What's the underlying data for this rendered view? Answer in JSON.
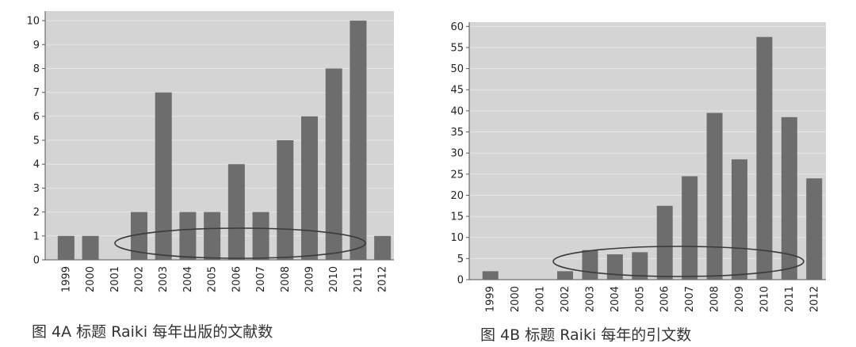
{
  "chart_data": [
    {
      "type": "bar",
      "caption": "图 4A 标题 Raiki 每年出版的文献数",
      "categories": [
        "1999",
        "2000",
        "2001",
        "2002",
        "2003",
        "2004",
        "2005",
        "2006",
        "2007",
        "2008",
        "2009",
        "2010",
        "2011",
        "2012"
      ],
      "values": [
        1,
        1,
        0,
        2,
        7,
        2,
        2,
        4,
        2,
        5,
        6,
        8,
        10,
        1
      ],
      "y_ticks": [
        "0",
        "1",
        "2",
        "3",
        "4",
        "5",
        "6",
        "7",
        "8",
        "9",
        "10"
      ],
      "ylim": [
        0,
        10.4
      ],
      "grid": true,
      "has_ellipse_annotation": true
    },
    {
      "type": "bar",
      "caption": "图 4B   标题 Raiki 每年的引文数",
      "categories": [
        "1999",
        "2000",
        "2001",
        "2002",
        "2003",
        "2004",
        "2005",
        "2006",
        "2007",
        "2008",
        "2009",
        "2010",
        "2011",
        "2012"
      ],
      "values": [
        2,
        0,
        0,
        2,
        7,
        6,
        6.5,
        17.5,
        24.5,
        39.5,
        28.5,
        57.5,
        38.5,
        24
      ],
      "y_ticks": [
        "0",
        "5",
        "10",
        "15",
        "20",
        "25",
        "30",
        "35",
        "40",
        "45",
        "50",
        "55",
        "60"
      ],
      "ylim": [
        0,
        61
      ],
      "grid": true,
      "has_ellipse_annotation": true
    }
  ],
  "colors": {
    "plot_background": "#d4d4d4",
    "bar": "#6d6d6d",
    "gridline": "#e6e6e6",
    "axis": "#555555",
    "ellipse": "#3a3a3a"
  }
}
